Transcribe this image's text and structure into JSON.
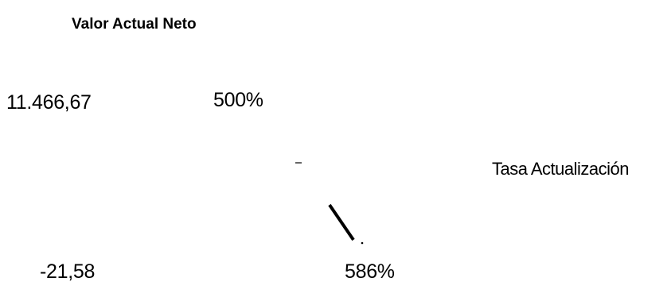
{
  "title": "Valor Actual Neto",
  "npv_top": "11.466,67",
  "npv_bottom": "-21,58",
  "rate_low": "500%",
  "rate_high": "586%",
  "x_axis_label": "Tasa Actualización",
  "colors": {
    "text": "#000000",
    "line": "#000000",
    "background": "#ffffff"
  }
}
